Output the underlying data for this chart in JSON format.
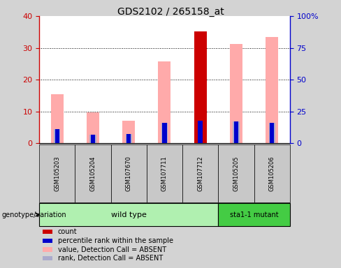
{
  "title": "GDS2102 / 265158_at",
  "samples": [
    "GSM105203",
    "GSM105204",
    "GSM107670",
    "GSM107711",
    "GSM107712",
    "GSM105205",
    "GSM105206"
  ],
  "pink_values": [
    15.5,
    9.8,
    7.2,
    25.8,
    0,
    31.2,
    33.5
  ],
  "red_values": [
    0,
    0,
    0,
    0,
    35.2,
    0,
    0
  ],
  "blue_values": [
    4.5,
    2.8,
    3.0,
    6.5,
    7.2,
    7.0,
    6.5
  ],
  "lightblue_values": [
    4.5,
    2.8,
    3.0,
    6.5,
    0,
    7.0,
    6.5
  ],
  "ylim_left": [
    0,
    40
  ],
  "ylim_right": [
    0,
    100
  ],
  "yticks_left": [
    0,
    10,
    20,
    30,
    40
  ],
  "yticks_right": [
    0,
    25,
    50,
    75,
    100
  ],
  "ytick_labels_right": [
    "0",
    "25",
    "50",
    "75",
    "100%"
  ],
  "bar_width": 0.35,
  "blue_bar_width": 0.18,
  "left_axis_color": "#cc0000",
  "right_axis_color": "#0000cc",
  "plot_bg": "#ffffff",
  "fig_bg": "#d3d3d3",
  "pink_color": "#ffaaaa",
  "red_color": "#cc0000",
  "blue_color": "#0000cc",
  "lightblue_color": "#aaaacc",
  "wt_color": "#b0f0b0",
  "mut_color": "#44cc44",
  "sample_box_color": "#c8c8c8",
  "wt_count": 5,
  "mut_count": 2,
  "legend_labels": [
    "count",
    "percentile rank within the sample",
    "value, Detection Call = ABSENT",
    "rank, Detection Call = ABSENT"
  ],
  "legend_colors": [
    "#cc0000",
    "#0000cc",
    "#ffaaaa",
    "#aaaacc"
  ]
}
